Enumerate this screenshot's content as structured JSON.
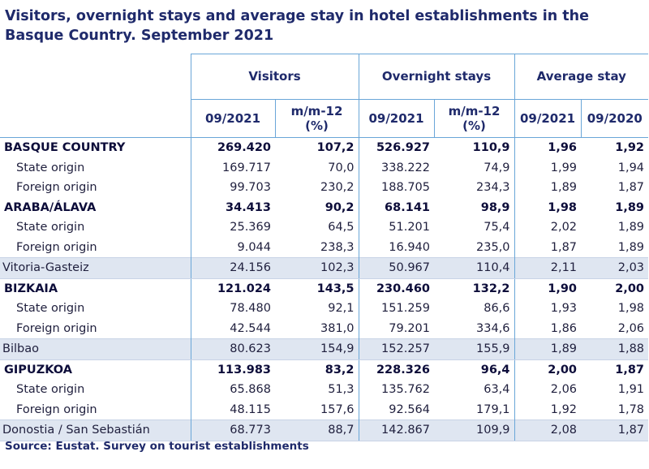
{
  "title": "Visitors, overnight stays and average stay in hotel establishments in the Basque Country.  September 2021",
  "headers": {
    "group1": "Visitors",
    "group2": "Overnight stays",
    "group3": "Average stay",
    "cols": [
      "09/2021",
      "m/m-12\n(%)",
      "09/2021",
      "m/m-12\n(%)",
      "09/2021",
      "09/2020"
    ]
  },
  "rows": [
    {
      "label": "BASQUE COUNTRY",
      "type": "bold",
      "v": [
        "269.420",
        "107,2",
        "526.927",
        "110,9",
        "1,96",
        "1,92"
      ]
    },
    {
      "label": "State origin",
      "type": "sub",
      "v": [
        "169.717",
        "70,0",
        "338.222",
        "74,9",
        "1,99",
        "1,94"
      ]
    },
    {
      "label": "Foreign origin",
      "type": "sub",
      "v": [
        "99.703",
        "230,2",
        "188.705",
        "234,3",
        "1,89",
        "1,87"
      ]
    },
    {
      "label": "ARABA/ÁLAVA",
      "type": "bold",
      "v": [
        "34.413",
        "90,2",
        "68.141",
        "98,9",
        "1,98",
        "1,89"
      ]
    },
    {
      "label": "State origin",
      "type": "sub",
      "v": [
        "25.369",
        "64,5",
        "51.201",
        "75,4",
        "2,02",
        "1,89"
      ]
    },
    {
      "label": "Foreign origin",
      "type": "sub",
      "v": [
        "9.044",
        "238,3",
        "16.940",
        "235,0",
        "1,87",
        "1,89"
      ]
    },
    {
      "label": "Vitoria-Gasteiz",
      "type": "city",
      "v": [
        "24.156",
        "102,3",
        "50.967",
        "110,4",
        "2,11",
        "2,03"
      ]
    },
    {
      "label": "BIZKAIA",
      "type": "bold",
      "v": [
        "121.024",
        "143,5",
        "230.460",
        "132,2",
        "1,90",
        "2,00"
      ]
    },
    {
      "label": "State origin",
      "type": "sub",
      "v": [
        "78.480",
        "92,1",
        "151.259",
        "86,6",
        "1,93",
        "1,98"
      ]
    },
    {
      "label": "Foreign origin",
      "type": "sub",
      "v": [
        "42.544",
        "381,0",
        "79.201",
        "334,6",
        "1,86",
        "2,06"
      ]
    },
    {
      "label": "Bilbao",
      "type": "city",
      "v": [
        "80.623",
        "154,9",
        "152.257",
        "155,9",
        "1,89",
        "1,88"
      ]
    },
    {
      "label": "GIPUZKOA",
      "type": "bold",
      "v": [
        "113.983",
        "83,2",
        "228.326",
        "96,4",
        "2,00",
        "1,87"
      ]
    },
    {
      "label": "State origin",
      "type": "sub",
      "v": [
        "65.868",
        "51,3",
        "135.762",
        "63,4",
        "2,06",
        "1,91"
      ]
    },
    {
      "label": "Foreign origin",
      "type": "sub",
      "v": [
        "48.115",
        "157,6",
        "92.564",
        "179,1",
        "1,92",
        "1,78"
      ]
    },
    {
      "label": "Donostia / San Sebastián",
      "type": "city",
      "v": [
        "68.773",
        "88,7",
        "142.867",
        "109,9",
        "2,08",
        "1,87"
      ]
    }
  ],
  "source": "Source: Eustat. Survey on tourist establishments"
}
